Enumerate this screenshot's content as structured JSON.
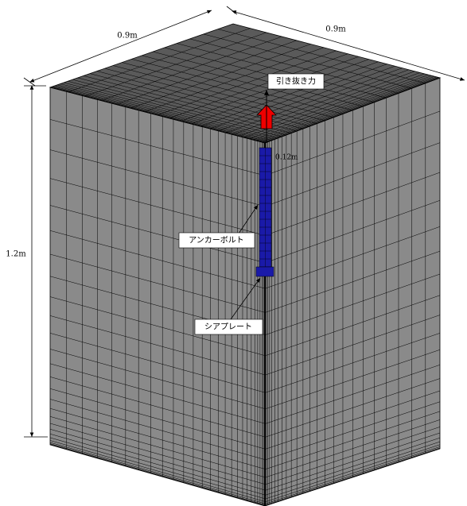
{
  "dimensions": {
    "width_top_left": "0.9m",
    "width_top_right": "0.9m",
    "height": "1.2m",
    "bolt_length": "0.12m"
  },
  "labels": {
    "pullout_force": "引き抜き力",
    "anchor_bolt": "アンカーボルト",
    "shear_plate": "シアプレート"
  }
}
